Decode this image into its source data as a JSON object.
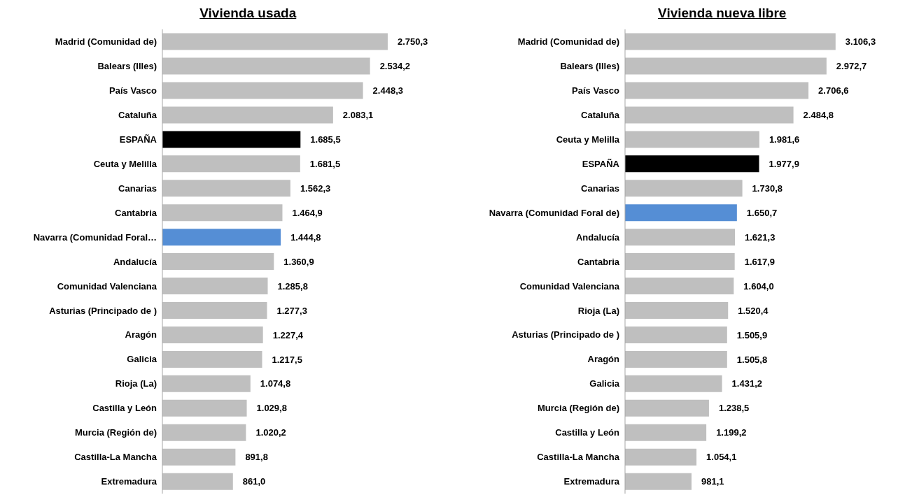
{
  "chart_data": [
    {
      "type": "bar",
      "orientation": "horizontal",
      "title": "Vivienda usada",
      "categories": [
        "Madrid (Comunidad de)",
        "Balears (Illes)",
        "País Vasco",
        "Cataluña",
        "ESPAÑA",
        "Ceuta y Melilla",
        "Canarias",
        "Cantabria",
        "Navarra (Comunidad Foral…",
        "Andalucía",
        "Comunidad Valenciana",
        "Asturias (Principado de )",
        "Aragón",
        "Galicia",
        "Rioja (La)",
        "Castilla y León",
        "Murcia (Región de)",
        "Castilla-La Mancha",
        "Extremadura"
      ],
      "values": [
        2750.3,
        2534.2,
        2448.3,
        2083.1,
        1685.5,
        1681.5,
        1562.3,
        1464.9,
        1444.8,
        1360.9,
        1285.8,
        1277.3,
        1227.4,
        1217.5,
        1074.8,
        1029.8,
        1020.2,
        891.8,
        861.0
      ],
      "value_labels": [
        "2.750,3",
        "2.534,2",
        "2.448,3",
        "2.083,1",
        "1.685,5",
        "1.681,5",
        "1.562,3",
        "1.464,9",
        "1.444,8",
        "1.360,9",
        "1.285,8",
        "1.277,3",
        "1.227,4",
        "1.217,5",
        "1.074,8",
        "1.029,8",
        "1.020,2",
        "891,8",
        "861,0"
      ],
      "colors": [
        "#bfbfbf",
        "#bfbfbf",
        "#bfbfbf",
        "#bfbfbf",
        "#000000",
        "#bfbfbf",
        "#bfbfbf",
        "#bfbfbf",
        "#558ed5",
        "#bfbfbf",
        "#bfbfbf",
        "#bfbfbf",
        "#bfbfbf",
        "#bfbfbf",
        "#bfbfbf",
        "#bfbfbf",
        "#bfbfbf",
        "#bfbfbf",
        "#bfbfbf"
      ]
    },
    {
      "type": "bar",
      "orientation": "horizontal",
      "title": "Vivienda nueva libre",
      "categories": [
        "Madrid (Comunidad de)",
        "Balears (Illes)",
        "País Vasco",
        "Cataluña",
        "Ceuta y Melilla",
        "ESPAÑA",
        "Canarias",
        "Navarra (Comunidad Foral de)",
        "Andalucía",
        "Cantabria",
        "Comunidad Valenciana",
        "Rioja (La)",
        "Asturias (Principado de )",
        "Aragón",
        "Galicia",
        "Murcia (Región de)",
        "Castilla y León",
        "Castilla-La Mancha",
        "Extremadura"
      ],
      "values": [
        3106.3,
        2972.7,
        2706.6,
        2484.8,
        1981.6,
        1977.9,
        1730.8,
        1650.7,
        1621.3,
        1617.9,
        1604.0,
        1520.4,
        1505.9,
        1505.8,
        1431.2,
        1238.5,
        1199.2,
        1054.1,
        981.1
      ],
      "value_labels": [
        "3.106,3",
        "2.972,7",
        "2.706,6",
        "2.484,8",
        "1.981,6",
        "1.977,9",
        "1.730,8",
        "1.650,7",
        "1.621,3",
        "1.617,9",
        "1.604,0",
        "1.520,4",
        "1.505,9",
        "1.505,8",
        "1.431,2",
        "1.238,5",
        "1.199,2",
        "1.054,1",
        "981,1"
      ],
      "colors": [
        "#bfbfbf",
        "#bfbfbf",
        "#bfbfbf",
        "#bfbfbf",
        "#bfbfbf",
        "#000000",
        "#bfbfbf",
        "#558ed5",
        "#bfbfbf",
        "#bfbfbf",
        "#bfbfbf",
        "#bfbfbf",
        "#bfbfbf",
        "#bfbfbf",
        "#bfbfbf",
        "#bfbfbf",
        "#bfbfbf",
        "#bfbfbf",
        "#bfbfbf"
      ]
    }
  ]
}
